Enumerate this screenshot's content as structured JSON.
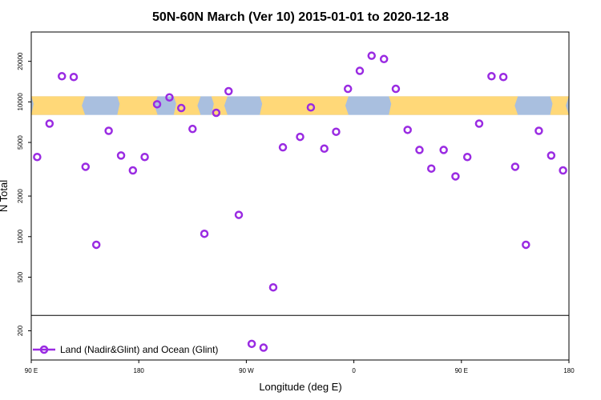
{
  "chart_data": {
    "type": "scatter",
    "title": "50N-60N March (Ver 10)   2015-01-01 to 2020-12-18",
    "xlabel": "Longitude (deg E)",
    "ylabel": "N Total",
    "y_scale": "log",
    "ylim": [
      130,
      30000
    ],
    "xlim_index": [
      0,
      1
    ],
    "x_ticks": [
      "90 E",
      "180",
      "90 W",
      "0",
      "90 E",
      "180"
    ],
    "y_ticks": [
      {
        "value": 20000,
        "label": "20000"
      },
      {
        "value": 10000,
        "label": "10000"
      },
      {
        "value": 5000,
        "label": "5000"
      },
      {
        "value": 2000,
        "label": "2000"
      },
      {
        "value": 1000,
        "label": "1000"
      },
      {
        "value": 500,
        "label": "500"
      },
      {
        "value": 200,
        "label": "200"
      }
    ],
    "separator_value": 260,
    "map_band": {
      "y_low": 8000,
      "y_high": 11000,
      "land_color": "#ffd878",
      "ocean_color": "#a9bfdf"
    },
    "series": [
      {
        "name": "Land (Nadir&Glint) and Ocean (Glint)",
        "color": "#9a2be2",
        "x": [
          0.011,
          0.034,
          0.057,
          0.079,
          0.101,
          0.121,
          0.144,
          0.167,
          0.189,
          0.211,
          0.234,
          0.257,
          0.279,
          0.3,
          0.322,
          0.344,
          0.367,
          0.386,
          0.41,
          0.432,
          0.45,
          0.468,
          0.5,
          0.52,
          0.545,
          0.567,
          0.589,
          0.611,
          0.633,
          0.656,
          0.678,
          0.7,
          0.722,
          0.744,
          0.767,
          0.789,
          0.811,
          0.833,
          0.856,
          0.878,
          0.9,
          0.92,
          0.944,
          0.967,
          0.989
        ],
        "y": [
          3900,
          6900,
          15500,
          15300,
          3300,
          870,
          6100,
          4000,
          3100,
          3900,
          9600,
          10800,
          9000,
          6300,
          1050,
          8300,
          12000,
          1450,
          160,
          150,
          420,
          4600,
          5500,
          9100,
          4500,
          6000,
          12500,
          17000,
          22000,
          20800,
          12500,
          6200,
          4400,
          3200,
          4400,
          2800,
          3900,
          6900,
          15500,
          15300,
          3300,
          870,
          6100,
          4000,
          3100
        ]
      }
    ]
  }
}
